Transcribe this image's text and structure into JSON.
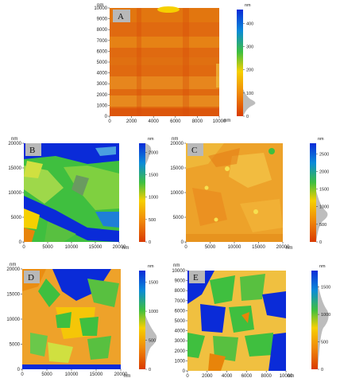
{
  "panels": [
    {
      "id": "A",
      "label": "A",
      "unit_top": "nm",
      "unit_right": "nm",
      "x_ticks": [
        "0",
        "2000",
        "4000",
        "6000",
        "8000",
        "10000"
      ],
      "y_ticks": [
        "0",
        "1000",
        "2000",
        "3000",
        "4000",
        "5000",
        "6000",
        "7000",
        "8000",
        "9000",
        "10000"
      ],
      "cbar_ticks": [
        "0",
        "100",
        "200",
        "300",
        "400"
      ],
      "cbar_unit": "nm",
      "palette": [
        "#d93a00",
        "#e8840a",
        "#f0c000",
        "#3fbf3f",
        "#0a2bd8"
      ],
      "dominant": "orange-red"
    },
    {
      "id": "B",
      "label": "B",
      "unit_top": "nm",
      "unit_right": "nm",
      "x_ticks": [
        "0",
        "5000",
        "10000",
        "15000",
        "20000"
      ],
      "y_ticks": [
        "0",
        "5000",
        "10000",
        "15000",
        "20000"
      ],
      "cbar_ticks": [
        "0",
        "500",
        "1000",
        "1500",
        "2000"
      ],
      "cbar_unit": "nm",
      "palette": [
        "#d93a00",
        "#e8840a",
        "#f0c000",
        "#3fbf3f",
        "#0a2bd8"
      ],
      "dominant": "green-blue"
    },
    {
      "id": "C",
      "label": "C",
      "unit_top": "nm",
      "unit_right": "nm",
      "x_ticks": [
        "0",
        "5000",
        "10000",
        "15000",
        "20000"
      ],
      "y_ticks": [
        "0",
        "5000",
        "10000",
        "15000",
        "20000"
      ],
      "cbar_ticks": [
        "0",
        "500",
        "1000",
        "1500",
        "2000",
        "2500"
      ],
      "cbar_unit": "nm",
      "palette": [
        "#d93a00",
        "#e8840a",
        "#f0c000",
        "#3fbf3f",
        "#0a2bd8"
      ],
      "dominant": "orange-yellow"
    },
    {
      "id": "D",
      "label": "D",
      "unit_top": "nm",
      "unit_right": "nm",
      "x_ticks": [
        "0",
        "5000",
        "10000",
        "15000",
        "20000"
      ],
      "y_ticks": [
        "0",
        "5000",
        "10000",
        "15000",
        "20000"
      ],
      "cbar_ticks": [
        "0",
        "500",
        "1000",
        "1500"
      ],
      "cbar_unit": "nm",
      "palette": [
        "#d93a00",
        "#e8840a",
        "#f0c000",
        "#3fbf3f",
        "#0a2bd8"
      ],
      "dominant": "orange-green-blue"
    },
    {
      "id": "E",
      "label": "E",
      "unit_top": "nm",
      "unit_right": "nm",
      "x_ticks": [
        "0",
        "2000",
        "4000",
        "6000",
        "8000",
        "10000"
      ],
      "y_ticks": [
        "0",
        "1000",
        "2000",
        "3000",
        "4000",
        "5000",
        "6000",
        "7000",
        "8000",
        "9000",
        "10000"
      ],
      "cbar_ticks": [
        "0",
        "500",
        "1000",
        "1500"
      ],
      "cbar_unit": "nm",
      "palette": [
        "#d93a00",
        "#e8840a",
        "#f0c000",
        "#3fbf3f",
        "#0a2bd8"
      ],
      "dominant": "yellow-green-blue"
    }
  ]
}
